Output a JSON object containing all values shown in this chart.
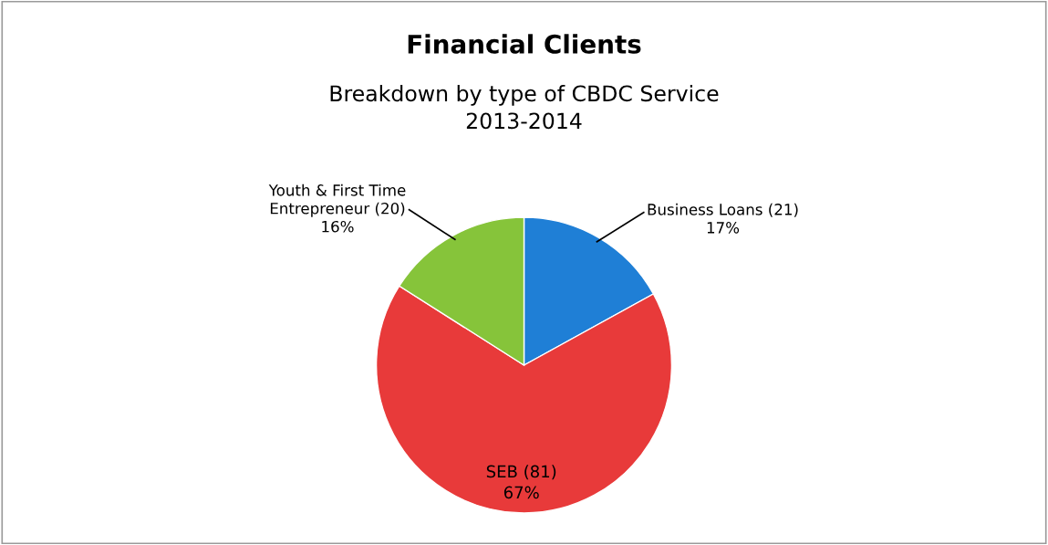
{
  "chart_data": {
    "type": "pie",
    "title": "Financial Clients",
    "subtitle": "Breakdown by type of CBDC Service\n2013-2014",
    "categories": [
      "Business Loans (21)",
      "SEB (81)",
      "Youth & First Time\nEntrepreneur (20)"
    ],
    "values": [
      17,
      67,
      16
    ],
    "value_labels": [
      "17%",
      "67%",
      "16%"
    ],
    "colors": [
      "#1f7fd6",
      "#e83a3a",
      "#86c43a"
    ],
    "legend": false
  }
}
